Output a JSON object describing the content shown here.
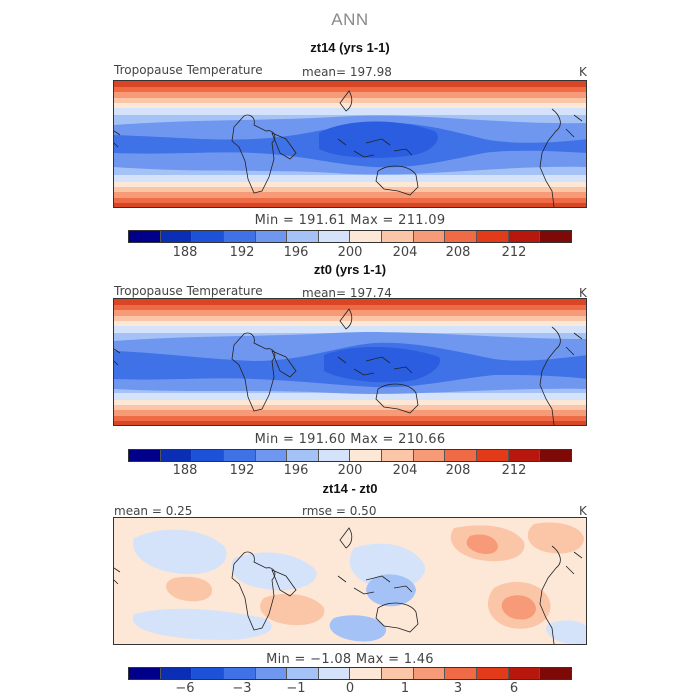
{
  "figure": {
    "title": "ANN"
  },
  "panels": [
    {
      "title": "zt14 (yrs 1-1)",
      "left_label": "Tropopause Temperature",
      "center_label": "mean= 197.98",
      "units": "K",
      "minmax": "Min = 191.61 Max = 211.09",
      "colorbar_ticks": [
        "188",
        "192",
        "196",
        "200",
        "204",
        "208",
        "212"
      ]
    },
    {
      "title": "zt0 (yrs 1-1)",
      "left_label": "Tropopause Temperature",
      "center_label": "mean= 197.74",
      "units": "K",
      "minmax": "Min = 191.60 Max = 210.66",
      "colorbar_ticks": [
        "188",
        "192",
        "196",
        "200",
        "204",
        "208",
        "212"
      ]
    },
    {
      "title": "zt14 - zt0",
      "left_label": "mean =   0.25",
      "center_label": "rmse =   0.50",
      "units": "K",
      "minmax": "Min = −1.08 Max =   1.46",
      "colorbar_ticks": [
        "−6",
        "−3",
        "−1",
        "0",
        "1",
        "3",
        "6"
      ]
    }
  ],
  "colors": {
    "palette": [
      "#00008b",
      "#0a2fb5",
      "#1d51d8",
      "#3f72e6",
      "#6f97f0",
      "#a5c2f6",
      "#d4e3fa",
      "#fde8d8",
      "#fbc6a8",
      "#f79a78",
      "#f06a45",
      "#e33b1a",
      "#b8170d",
      "#7d0a06"
    ]
  }
}
